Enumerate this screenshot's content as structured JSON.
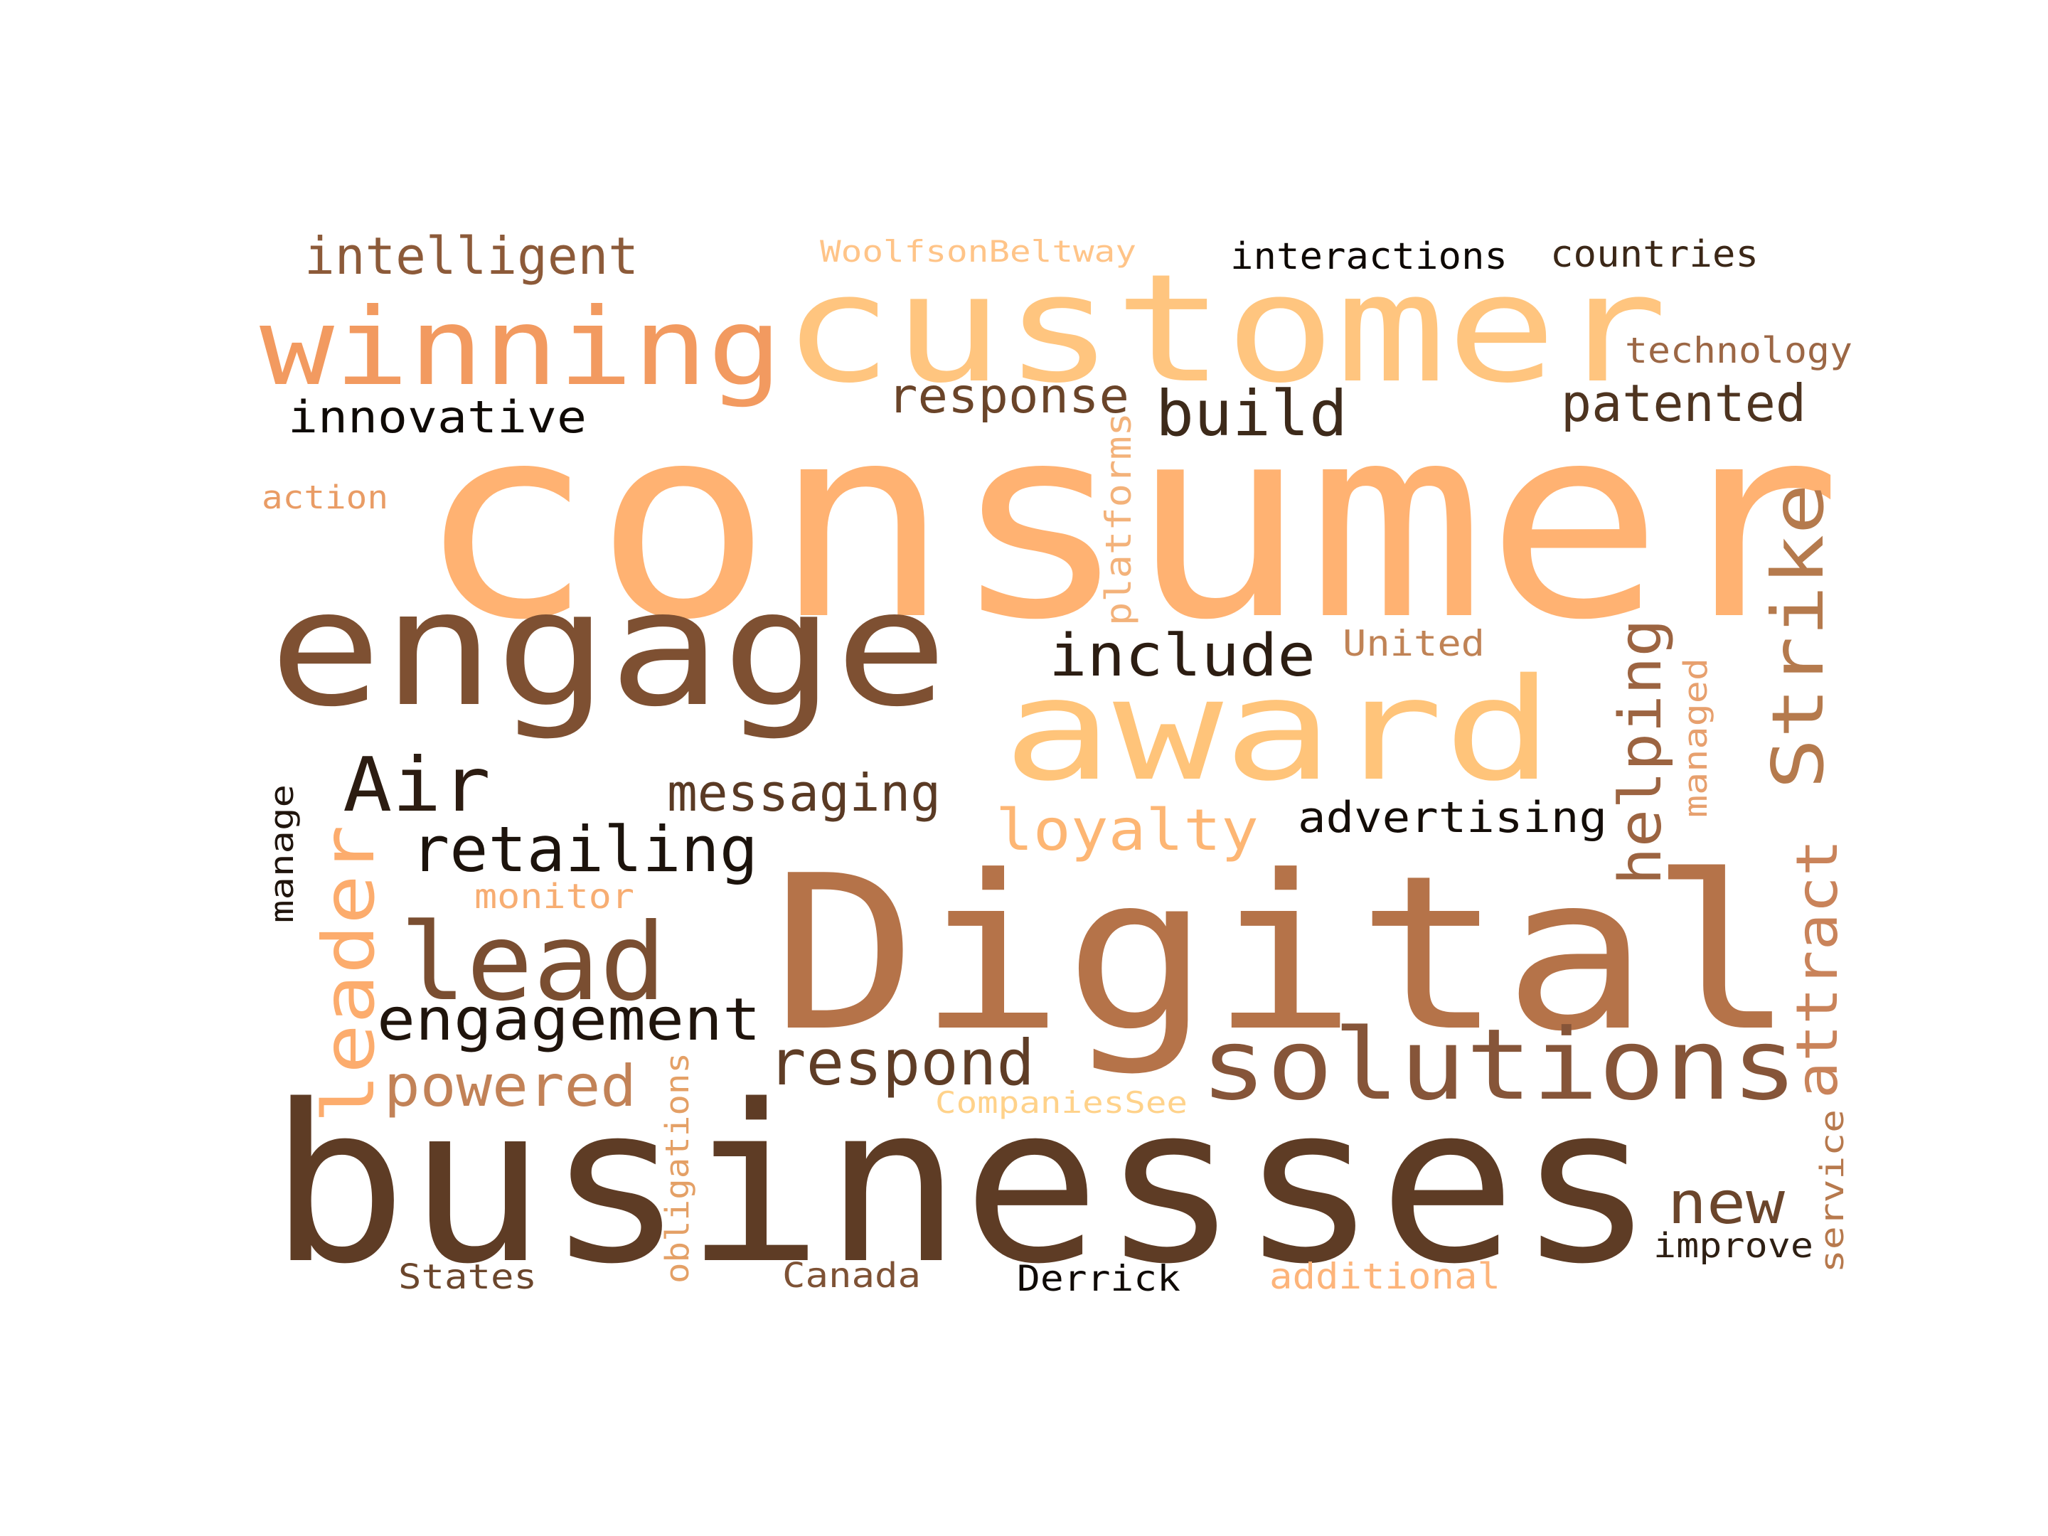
{
  "words": [
    {
      "text": "consumer",
      "color": "#FFB272"
    },
    {
      "text": "businesses",
      "color": "#5E3C25"
    },
    {
      "text": "Digital",
      "color": "#B57349"
    },
    {
      "text": "engage",
      "color": "#7E5032"
    },
    {
      "text": "customer",
      "color": "#FFC57F"
    },
    {
      "text": "award",
      "color": "#FFC47A"
    },
    {
      "text": "winning",
      "color": "#F29A60"
    },
    {
      "text": "solutions",
      "color": "#865539"
    },
    {
      "text": "lead",
      "color": "#7A4E31"
    },
    {
      "text": "leader",
      "color": "#FCAC6D"
    },
    {
      "text": "Strike",
      "color": "#B57A4D"
    },
    {
      "text": "Air",
      "color": "#2C1C11"
    },
    {
      "text": "retailing",
      "color": "#1C130C"
    },
    {
      "text": "engagement",
      "color": "#1F140C"
    },
    {
      "text": "respond",
      "color": "#5F3D26"
    },
    {
      "text": "include",
      "color": "#2C1D12"
    },
    {
      "text": "helping",
      "color": "#9C6441"
    },
    {
      "text": "attract",
      "color": "#C9835A"
    },
    {
      "text": "powered",
      "color": "#C28257"
    },
    {
      "text": "loyalty",
      "color": "#FDB674"
    },
    {
      "text": "messaging",
      "color": "#5A3A24"
    },
    {
      "text": "build",
      "color": "#3D2A1A"
    },
    {
      "text": "patented",
      "color": "#4E3420"
    },
    {
      "text": "intelligent",
      "color": "#8C5A39"
    },
    {
      "text": "response",
      "color": "#6A4429"
    },
    {
      "text": "new",
      "color": "#6B452B"
    },
    {
      "text": "innovative",
      "color": "#0F0A06"
    },
    {
      "text": "advertising",
      "color": "#140D08"
    },
    {
      "text": "interactions",
      "color": "#0E0905"
    },
    {
      "text": "countries",
      "color": "#3B2717"
    },
    {
      "text": "technology",
      "color": "#9C6745"
    },
    {
      "text": "platforms",
      "color": "#F3B27A"
    },
    {
      "text": "United",
      "color": "#C08356"
    },
    {
      "text": "managed",
      "color": "#E7A06E"
    },
    {
      "text": "service",
      "color": "#B7794D"
    },
    {
      "text": "improve",
      "color": "#2E1F13"
    },
    {
      "text": "obligations",
      "color": "#E4A066"
    },
    {
      "text": "CompaniesSee",
      "color": "#FFD28A"
    },
    {
      "text": "monitor",
      "color": "#F7AD72"
    },
    {
      "text": "manage",
      "color": "#20150D"
    },
    {
      "text": "action",
      "color": "#E99C65"
    },
    {
      "text": "WoolfsonBeltway",
      "color": "#FFC488"
    },
    {
      "text": "States",
      "color": "#6B462C"
    },
    {
      "text": "Canada",
      "color": "#7E5235"
    },
    {
      "text": "Derrick",
      "color": "#0F0A06"
    },
    {
      "text": "additional",
      "color": "#FDB47A"
    }
  ]
}
